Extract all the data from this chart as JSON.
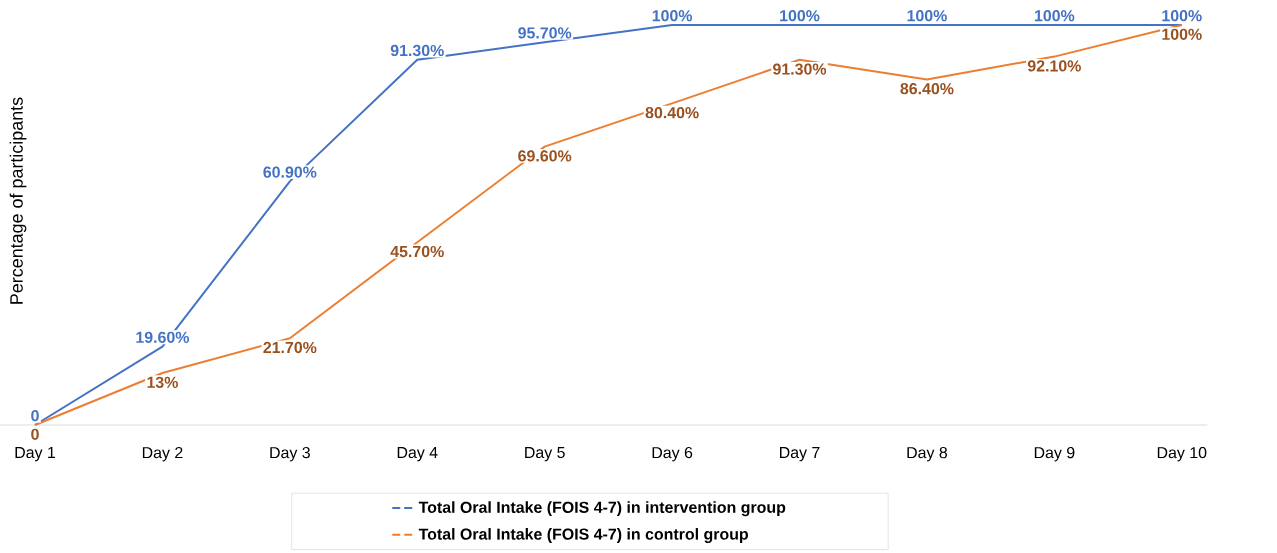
{
  "chart_data": {
    "type": "line",
    "ylabel": "Percentage of participants",
    "categories": [
      "Day 1",
      "Day 2",
      "Day 3",
      "Day 4",
      "Day 5",
      "Day 6",
      "Day 7",
      "Day 8",
      "Day 9",
      "Day 10"
    ],
    "series": [
      {
        "name": "Total Oral Intake (FOIS 4-7) in intervention group",
        "color": "#4472c4",
        "values": [
          0,
          19.6,
          60.9,
          91.3,
          95.7,
          100,
          100,
          100,
          100,
          100
        ],
        "value_labels": [
          "0",
          "19.60%",
          "60.90%",
          "91.30%",
          "95.70%",
          "100%",
          "100%",
          "100%",
          "100%",
          "100%"
        ]
      },
      {
        "name": "Total Oral Intake (FOIS 4-7) in control group",
        "color": "#ed7d31",
        "values": [
          0,
          13,
          21.7,
          45.7,
          69.6,
          80.4,
          91.3,
          86.4,
          92.1,
          100
        ],
        "value_labels": [
          "0",
          "13%",
          "21.70%",
          "45.70%",
          "69.60%",
          "80.40%",
          "91.30%",
          "86.40%",
          "92.10%",
          "100%"
        ]
      }
    ],
    "legend": "bottom",
    "marker": "none",
    "line_style": "solid"
  }
}
